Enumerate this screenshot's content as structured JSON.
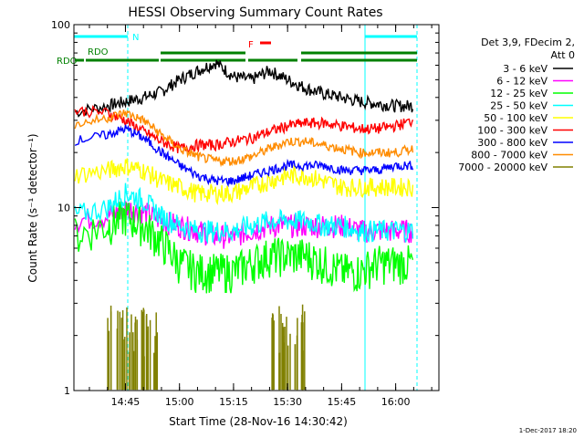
{
  "chart_data": {
    "type": "line",
    "title": "HESSI Observing Summary Count Rates",
    "xlabel": "Start Time (28-Nov-16 14:30:42)",
    "ylabel": "Count Rate (s⁻¹ detector⁻¹)",
    "y_scale": "log",
    "ylim": [
      1,
      100
    ],
    "xlim": [
      "14:30:42",
      "16:12:00"
    ],
    "x_ticks": [
      "14:45",
      "15:00",
      "15:15",
      "15:30",
      "15:45",
      "16:00"
    ],
    "y_ticks": [
      "1",
      "10",
      "100"
    ],
    "legend_header": [
      "Det 3,9, FDecim 2,",
      "Att 0"
    ],
    "legend_position": "right",
    "x": [
      "14:30",
      "14:40",
      "14:45",
      "14:50",
      "14:55",
      "15:00",
      "15:05",
      "15:10",
      "15:15",
      "15:20",
      "15:25",
      "15:30",
      "15:35",
      "15:40",
      "15:45",
      "15:50",
      "15:55",
      "16:00",
      "16:05"
    ],
    "series": [
      {
        "name": "3 - 6 keV",
        "color": "#000000",
        "values": [
          33,
          36,
          38,
          40,
          43,
          50,
          56,
          62,
          52,
          50,
          56,
          50,
          45,
          42,
          40,
          38,
          37,
          36,
          36
        ]
      },
      {
        "name": "6 - 12 keV",
        "color": "#ff00ff",
        "values": [
          8.5,
          9,
          10,
          9.5,
          8.5,
          8,
          7.5,
          7,
          7,
          7.5,
          8,
          8,
          8,
          8,
          8,
          7.5,
          7.5,
          7.5,
          7.5
        ]
      },
      {
        "name": "12 - 25 keV",
        "color": "#00ff00",
        "values": [
          7,
          8,
          9,
          8,
          6.5,
          5,
          4.5,
          4.5,
          4.5,
          5,
          5.5,
          5.5,
          5.5,
          5,
          4.5,
          4.5,
          5,
          5,
          5
        ]
      },
      {
        "name": "25 - 50 keV",
        "color": "#00ffff",
        "values": [
          9,
          10,
          12,
          11,
          9,
          8,
          7.5,
          7.5,
          7.5,
          8,
          8.5,
          8.5,
          8.5,
          8,
          8,
          7.5,
          7.5,
          7.5,
          7.5
        ]
      },
      {
        "name": "50 - 100 keV",
        "color": "#ffff00",
        "values": [
          15,
          16,
          17,
          16,
          14,
          13,
          12,
          12,
          12,
          13,
          14,
          15,
          15,
          14,
          13,
          13,
          13,
          13,
          13
        ]
      },
      {
        "name": "100 - 300 keV",
        "color": "#ff0000",
        "values": [
          34,
          33,
          30,
          26,
          23,
          21,
          22,
          22,
          23,
          24,
          26,
          28,
          29,
          29,
          28,
          27,
          27,
          28,
          30
        ]
      },
      {
        "name": "300 - 800 keV",
        "color": "#0000ff",
        "values": [
          23,
          25,
          27,
          24,
          20,
          17,
          15,
          14,
          14,
          15,
          16,
          17,
          17,
          17,
          16,
          16,
          16,
          17,
          17
        ]
      },
      {
        "name": "800 - 7000 keV",
        "color": "#ff8c00",
        "values": [
          28,
          31,
          33,
          30,
          25,
          21,
          19,
          18,
          18,
          19,
          21,
          23,
          23,
          22,
          21,
          20,
          20,
          20,
          21
        ]
      },
      {
        "name": "7000 - 20000 keV",
        "color": "#808000",
        "values": [
          null,
          1.5,
          2,
          1.5,
          null,
          null,
          null,
          null,
          null,
          null,
          1.5,
          1.5,
          null,
          null,
          null,
          null,
          null,
          null,
          null
        ]
      }
    ],
    "annotations": [
      "N",
      "RDO",
      "RDO",
      "F"
    ],
    "footer": "1-Dec-2017 18:20"
  }
}
